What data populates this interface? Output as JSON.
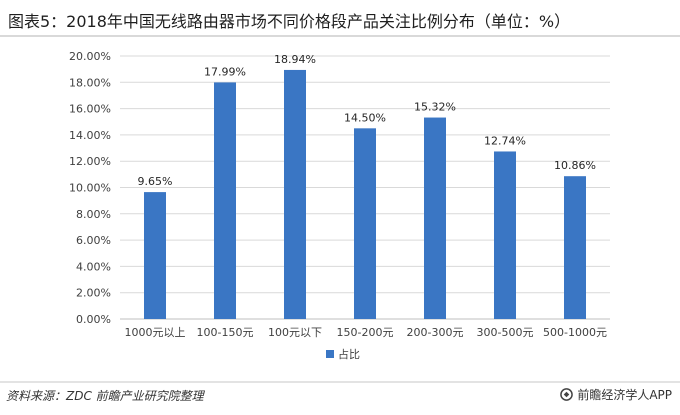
{
  "title": "图表5：2018年中国无线路由器市场不同价格段产品关注比例分布（单位：%）",
  "source": "资料来源：ZDC 前瞻产业研究院整理",
  "brand": "前瞻经济学人APP",
  "brand_icon": "qianzhan-logo-icon",
  "colors": {
    "bar": "#3a76c4",
    "grid": "#d9d9d9",
    "axis": "#bfbfbf",
    "text": "#404040"
  },
  "chart_data": {
    "type": "bar",
    "categories": [
      "1000元以上",
      "100-150元",
      "100元以下",
      "150-200元",
      "200-300元",
      "300-500元",
      "500-1000元"
    ],
    "series": [
      {
        "name": "占比",
        "values": [
          9.65,
          17.99,
          18.94,
          14.5,
          15.32,
          12.74,
          10.86
        ]
      }
    ],
    "data_labels": [
      "9.65%",
      "17.99%",
      "18.94%",
      "14.50%",
      "15.32%",
      "12.74%",
      "10.86%"
    ],
    "y_ticks": [
      "0.00%",
      "2.00%",
      "4.00%",
      "6.00%",
      "8.00%",
      "10.00%",
      "12.00%",
      "14.00%",
      "16.00%",
      "18.00%",
      "20.00%"
    ],
    "ylim": [
      0,
      20
    ],
    "grid": true,
    "legend_position": "bottom",
    "xlabel": "",
    "ylabel": ""
  }
}
